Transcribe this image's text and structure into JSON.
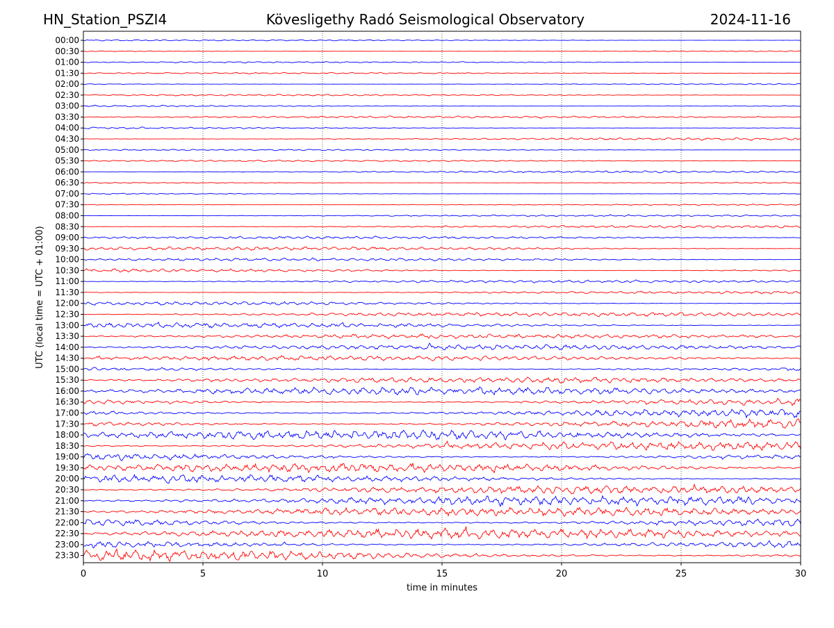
{
  "header": {
    "station": "HN_Station_PSZI4",
    "observatory": "Kövesligethy Radó Seismological Observatory",
    "date": "2024-11-16"
  },
  "chart_data": {
    "type": "line",
    "title": "Kövesligethy Radó Seismological Observatory",
    "xlabel": "time in minutes",
    "ylabel": "UTC (local time = UTC + 01:00)",
    "xlim": [
      0,
      30
    ],
    "x_ticks": [
      0,
      5,
      10,
      15,
      20,
      25,
      30
    ],
    "x_grid": "dotted vertical lines at 5-minute ticks",
    "row_labels": [
      "00:00",
      "00:30",
      "01:00",
      "01:30",
      "02:00",
      "02:30",
      "03:00",
      "03:30",
      "04:00",
      "04:30",
      "05:00",
      "05:30",
      "06:00",
      "06:30",
      "07:00",
      "07:30",
      "08:00",
      "08:30",
      "09:00",
      "09:30",
      "10:00",
      "10:30",
      "11:00",
      "11:30",
      "12:00",
      "12:30",
      "13:00",
      "13:30",
      "14:00",
      "14:30",
      "15:00",
      "15:30",
      "16:00",
      "16:30",
      "17:00",
      "17:30",
      "18:00",
      "18:30",
      "19:00",
      "19:30",
      "20:00",
      "20:30",
      "21:00",
      "21:30",
      "22:00",
      "22:30",
      "23:00",
      "23:30"
    ],
    "row_colors": [
      "#0000ff",
      "#ff0000"
    ],
    "relative_amplitude": [
      0.15,
      0.15,
      0.15,
      0.15,
      0.15,
      0.18,
      0.2,
      0.22,
      0.2,
      0.25,
      0.15,
      0.18,
      0.22,
      0.18,
      0.15,
      0.15,
      0.18,
      0.28,
      0.3,
      0.38,
      0.3,
      0.42,
      0.3,
      0.32,
      0.38,
      0.45,
      0.52,
      0.5,
      0.55,
      0.55,
      0.5,
      0.6,
      0.85,
      0.85,
      1.0,
      1.05,
      1.05,
      0.95,
      0.9,
      0.95,
      0.85,
      0.85,
      1.0,
      0.95,
      1.05,
      1.1,
      1.1,
      1.15
    ]
  }
}
